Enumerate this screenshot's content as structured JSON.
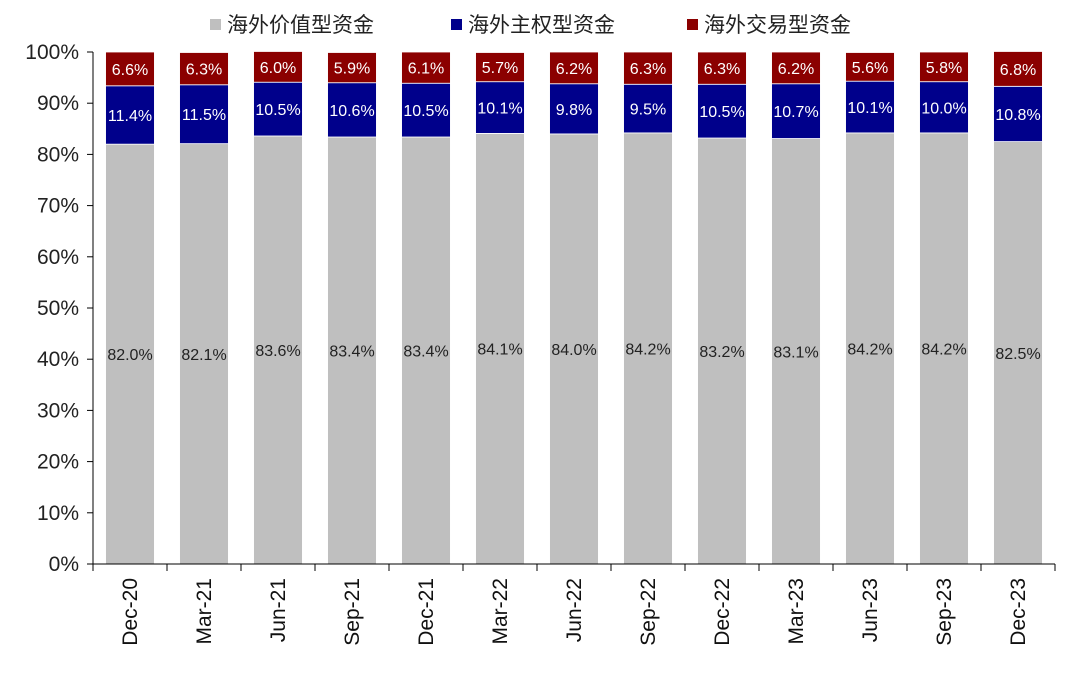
{
  "chart_data": {
    "type": "bar",
    "stacked": true,
    "percent": true,
    "categories": [
      "Dec-20",
      "Mar-21",
      "Jun-21",
      "Sep-21",
      "Dec-21",
      "Mar-22",
      "Jun-22",
      "Sep-22",
      "Dec-22",
      "Mar-23",
      "Jun-23",
      "Sep-23",
      "Dec-23"
    ],
    "series": [
      {
        "name": "海外价值型资金",
        "color": "#bfbfbf",
        "values": [
          82.0,
          82.1,
          83.6,
          83.4,
          83.4,
          84.1,
          84.0,
          84.2,
          83.2,
          83.1,
          84.2,
          84.2,
          82.5
        ],
        "labels": [
          "82.0%",
          "82.1%",
          "83.6%",
          "83.4%",
          "83.4%",
          "84.1%",
          "84.0%",
          "84.2%",
          "83.2%",
          "83.1%",
          "84.2%",
          "84.2%",
          "82.5%"
        ]
      },
      {
        "name": "海外主权型资金",
        "color": "#00008b",
        "values": [
          11.4,
          11.5,
          10.5,
          10.6,
          10.5,
          10.1,
          9.8,
          9.5,
          10.5,
          10.7,
          10.1,
          10.0,
          10.8
        ],
        "labels": [
          "11.4%",
          "11.5%",
          "10.5%",
          "10.6%",
          "10.5%",
          "10.1%",
          "9.8%",
          "9.5%",
          "10.5%",
          "10.7%",
          "10.1%",
          "10.0%",
          "10.8%"
        ]
      },
      {
        "name": "海外交易型资金",
        "color": "#8b0000",
        "values": [
          6.6,
          6.3,
          6.0,
          5.9,
          6.1,
          5.7,
          6.2,
          6.3,
          6.3,
          6.2,
          5.6,
          5.8,
          6.8
        ],
        "labels": [
          "6.6%",
          "6.3%",
          "6.0%",
          "5.9%",
          "6.1%",
          "5.7%",
          "6.2%",
          "6.3%",
          "6.3%",
          "6.2%",
          "5.6%",
          "5.8%",
          "6.8%"
        ]
      }
    ],
    "yticks": [
      "0%",
      "10%",
      "20%",
      "30%",
      "40%",
      "50%",
      "60%",
      "70%",
      "80%",
      "90%",
      "100%"
    ],
    "ylim": [
      0,
      100
    ],
    "grid": false,
    "legend_position": "top"
  }
}
